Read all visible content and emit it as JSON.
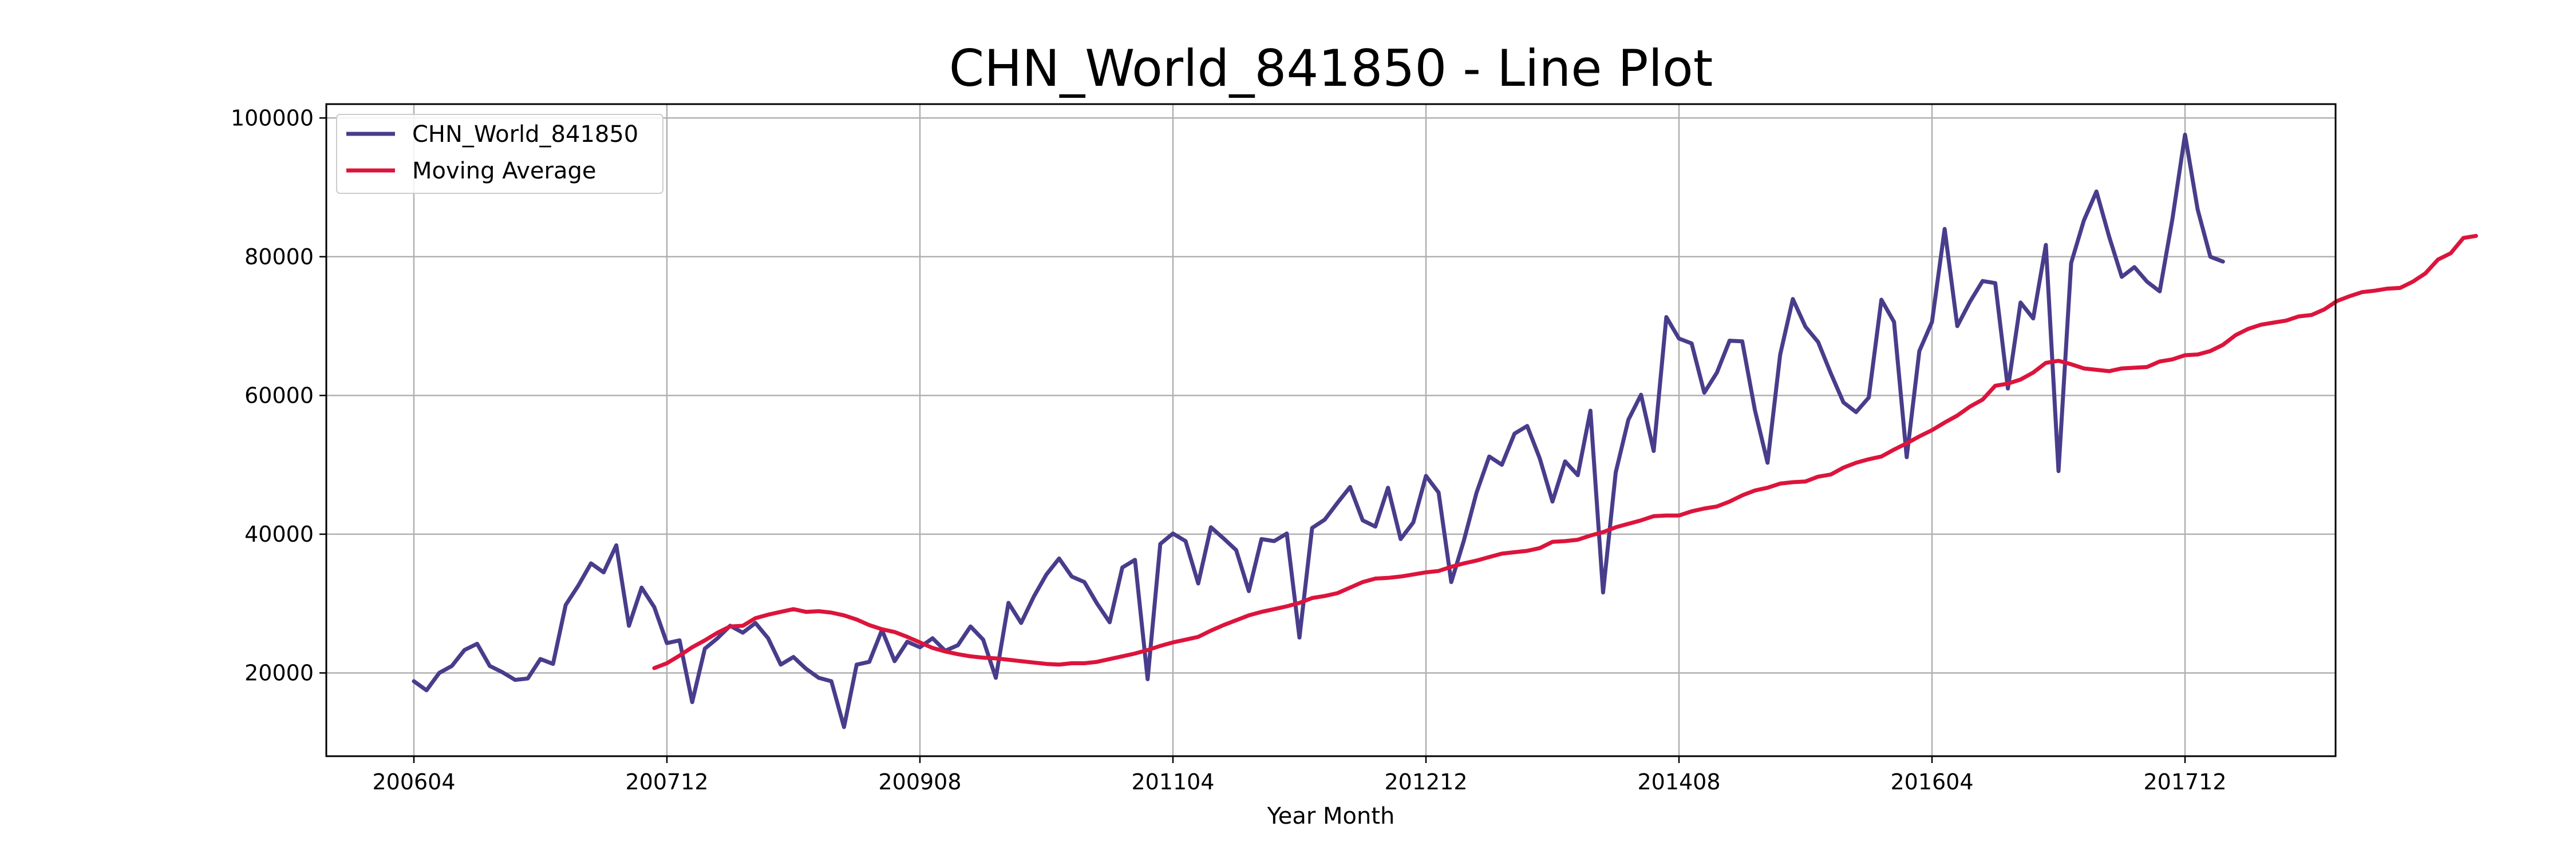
{
  "chart_data": {
    "type": "line",
    "title": "CHN_World_841850 - Line Plot",
    "xlabel": "Year Month",
    "ylabel": "",
    "ylim": [
      8000,
      102000
    ],
    "grid": true,
    "legend_position": "top-left",
    "x_tick_labels": [
      "200604",
      "200712",
      "200908",
      "201104",
      "201212",
      "201408",
      "201604",
      "201712"
    ],
    "y_tick_labels": [
      "20000",
      "40000",
      "60000",
      "80000",
      "100000"
    ],
    "y_ticks": [
      20000,
      40000,
      60000,
      80000,
      100000
    ],
    "colors": {
      "series": "#483D8B",
      "moving_average": "#DC143C",
      "grid": "#b0b0b0"
    },
    "series": [
      {
        "name": "CHN_World_841850",
        "start": "200604",
        "values": [
          18800,
          17500,
          20000,
          21000,
          23300,
          24200,
          21000,
          20100,
          19000,
          19200,
          22000,
          21300,
          29800,
          32600,
          35800,
          34500,
          38400,
          26800,
          32300,
          29500,
          24300,
          24700,
          15800,
          23500,
          25000,
          26800,
          25800,
          27200,
          25000,
          21200,
          22300,
          20600,
          19300,
          18800,
          12200,
          21200,
          21600,
          26200,
          21700,
          24500,
          23700,
          25000,
          23200,
          24000,
          26700,
          24800,
          19300,
          30100,
          27200,
          31000,
          34200,
          36500,
          33900,
          33100,
          30000,
          27300,
          35200,
          36300,
          19100,
          38600,
          40100,
          39000,
          32900,
          41000,
          39400,
          37700,
          31800,
          39300,
          39000,
          40100,
          25100,
          40900,
          42100,
          44500,
          46800,
          42000,
          41100,
          46700,
          39300,
          41700,
          48400,
          46000,
          33100,
          39100,
          46000,
          51200,
          50000,
          54500,
          55600,
          50900,
          44700,
          50500,
          48500,
          57800,
          31600,
          48900,
          56500,
          60100,
          52000,
          71300,
          68200,
          67500,
          60400,
          63300,
          67900,
          67800,
          57900,
          50300,
          65900,
          73900,
          69900,
          67700,
          63200,
          59000,
          57600,
          59700,
          73800,
          70600,
          51100,
          66400,
          70600,
          84000,
          70000,
          73500,
          76500,
          76200,
          61000,
          73400,
          71100,
          81700,
          49100,
          79100,
          85200,
          89400,
          82900,
          77100,
          78500,
          76400,
          75000,
          85400,
          97600,
          86800,
          80000,
          79300
        ]
      },
      {
        "name": "Moving Average",
        "start": "200711",
        "values": [
          20700,
          21400,
          22500,
          23700,
          24700,
          25800,
          26700,
          26800,
          27900,
          28400,
          28800,
          29200,
          28800,
          28900,
          28700,
          28300,
          27700,
          26900,
          26300,
          25900,
          25200,
          24400,
          23600,
          23100,
          22700,
          22400,
          22200,
          22100,
          21900,
          21700,
          21500,
          21300,
          21200,
          21400,
          21400,
          21600,
          22000,
          22400,
          22800,
          23300,
          23900,
          24400,
          24800,
          25200,
          26100,
          26900,
          27600,
          28300,
          28800,
          29200,
          29600,
          30100,
          30800,
          31100,
          31500,
          32300,
          33100,
          33600,
          33700,
          33900,
          34200,
          34500,
          34700,
          35300,
          35800,
          36200,
          36700,
          37200,
          37400,
          37600,
          38000,
          38900,
          39000,
          39200,
          39800,
          40300,
          41000,
          41500,
          42000,
          42600,
          42700,
          42700,
          43300,
          43700,
          44000,
          44700,
          45600,
          46300,
          46700,
          47300,
          47500,
          47600,
          48300,
          48600,
          49600,
          50300,
          50800,
          51200,
          52200,
          53100,
          54100,
          55000,
          56100,
          57100,
          58400,
          59400,
          61400,
          61700,
          62300,
          63300,
          64700,
          65000,
          64500,
          63900,
          63700,
          63500,
          63900,
          64000,
          64100,
          64900,
          65200,
          65800,
          65900,
          66400,
          67300,
          68700,
          69600,
          70200,
          70500,
          70800,
          71400,
          71600,
          72400,
          73600,
          74300,
          74900,
          75100,
          75400,
          75500,
          76400,
          77600,
          79600,
          80500,
          82700,
          83000
        ]
      }
    ]
  }
}
